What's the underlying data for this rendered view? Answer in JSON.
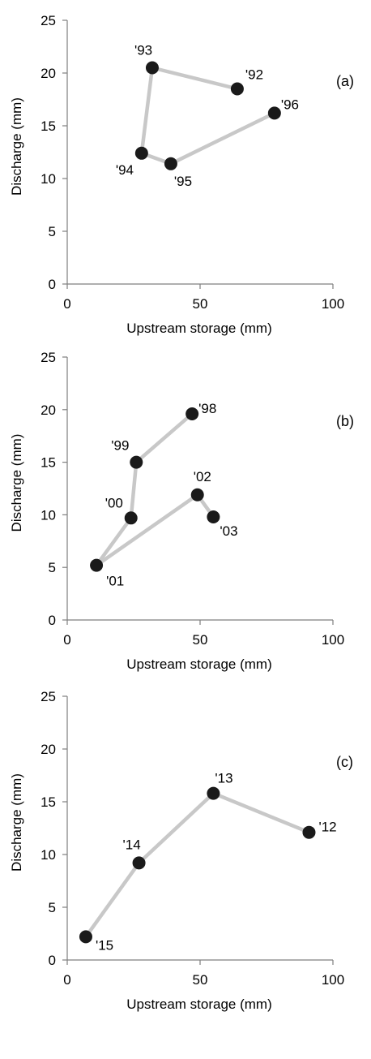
{
  "chart_data": [
    {
      "type": "scatter",
      "panel_label": "(a)",
      "xlabel": "Upstream storage (mm)",
      "ylabel": "Discharge (mm)",
      "xlim": [
        0,
        100
      ],
      "ylim": [
        0,
        25
      ],
      "xticks": [
        0,
        50,
        100
      ],
      "yticks": [
        0,
        5,
        10,
        15,
        20,
        25
      ],
      "grid": false,
      "line_color": "#c8c8c8",
      "marker_color": "#1a1a1a",
      "points": [
        {
          "label": "'92",
          "x": 64,
          "y": 18.5
        },
        {
          "label": "'93",
          "x": 32,
          "y": 20.5
        },
        {
          "label": "'94",
          "x": 28,
          "y": 12.4
        },
        {
          "label": "'95",
          "x": 39,
          "y": 11.4
        },
        {
          "label": "'96",
          "x": 78,
          "y": 16.2
        }
      ]
    },
    {
      "type": "scatter",
      "panel_label": "(b)",
      "xlabel": "Upstream storage (mm)",
      "ylabel": "Discharge (mm)",
      "xlim": [
        0,
        100
      ],
      "ylim": [
        0,
        25
      ],
      "xticks": [
        0,
        50,
        100
      ],
      "yticks": [
        0,
        5,
        10,
        15,
        20,
        25
      ],
      "grid": false,
      "line_color": "#c8c8c8",
      "marker_color": "#1a1a1a",
      "points": [
        {
          "label": "'98",
          "x": 47,
          "y": 19.6
        },
        {
          "label": "'99",
          "x": 26,
          "y": 15.0
        },
        {
          "label": "'00",
          "x": 24,
          "y": 9.7
        },
        {
          "label": "'01",
          "x": 11,
          "y": 5.2
        },
        {
          "label": "'02",
          "x": 49,
          "y": 11.9
        },
        {
          "label": "'03",
          "x": 55,
          "y": 9.8
        }
      ]
    },
    {
      "type": "scatter",
      "panel_label": "(c)",
      "xlabel": "Upstream storage (mm)",
      "ylabel": "Discharge (mm)",
      "xlim": [
        0,
        100
      ],
      "ylim": [
        0,
        25
      ],
      "xticks": [
        0,
        50,
        100
      ],
      "yticks": [
        0,
        5,
        10,
        15,
        20,
        25
      ],
      "grid": false,
      "line_color": "#c8c8c8",
      "marker_color": "#1a1a1a",
      "points": [
        {
          "label": "'12",
          "x": 91,
          "y": 12.1
        },
        {
          "label": "'13",
          "x": 55,
          "y": 15.8
        },
        {
          "label": "'14",
          "x": 27,
          "y": 9.2
        },
        {
          "label": "'15",
          "x": 7,
          "y": 2.2
        }
      ]
    }
  ]
}
